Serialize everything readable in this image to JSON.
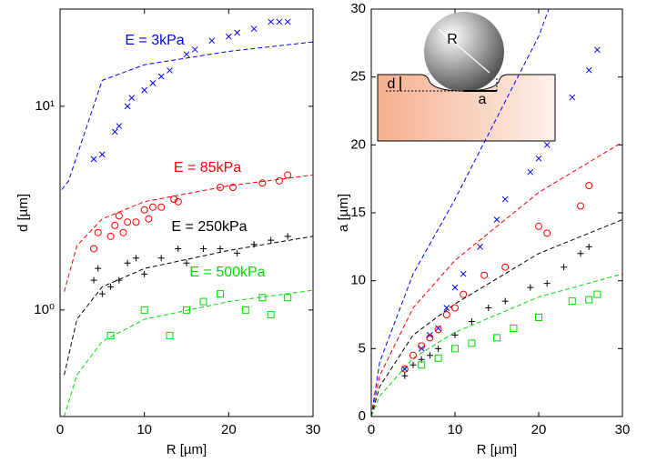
{
  "chart_data": [
    {
      "type": "scatter",
      "xlabel": "R [µm]",
      "ylabel": "d [µm]",
      "yscale": "log",
      "xlim": [
        0,
        30
      ],
      "ylim": [
        0.3,
        30
      ],
      "xticks": [
        0,
        10,
        20,
        30
      ],
      "yticks": [
        {
          "value": 1,
          "label": "10⁰"
        },
        {
          "value": 10,
          "label": "10¹"
        }
      ],
      "series": [
        {
          "name": "E = 3kPa",
          "color": "#0000ff",
          "marker": "x",
          "x": [
            4,
            5,
            6.5,
            7,
            8,
            8.5,
            10,
            11,
            12,
            13,
            15,
            16,
            18,
            20,
            21,
            23,
            25,
            26,
            27
          ],
          "values": [
            5.5,
            5.8,
            7.5,
            8,
            10,
            11,
            12,
            13,
            14,
            15,
            18,
            19,
            21,
            22,
            23,
            24,
            26,
            26,
            26
          ]
        },
        {
          "name": "E = 85kPa",
          "color": "#ff0000",
          "marker": "o",
          "x": [
            4,
            4.5,
            6,
            6.5,
            7,
            7.5,
            8,
            9,
            10,
            10.5,
            11,
            12,
            13.5,
            14,
            19,
            20.5,
            24,
            26,
            27
          ],
          "values": [
            2.0,
            2.4,
            2.3,
            2.6,
            2.9,
            2.4,
            2.7,
            2.7,
            3.1,
            2.8,
            3.2,
            3.2,
            3.5,
            3.4,
            4.0,
            4.0,
            4.2,
            4.3,
            4.6
          ]
        },
        {
          "name": "E = 250kPa",
          "color": "#000000",
          "marker": "+",
          "x": [
            4,
            4.5,
            5,
            6,
            7,
            8,
            9,
            10,
            12,
            14,
            15,
            17,
            19,
            21,
            23,
            25,
            27
          ],
          "values": [
            1.4,
            1.6,
            1.2,
            1.3,
            1.4,
            1.7,
            1.8,
            1.5,
            1.8,
            2.0,
            1.7,
            2.0,
            2.0,
            1.9,
            2.1,
            2.2,
            2.3
          ]
        },
        {
          "name": "E = 500kPa",
          "color": "#00dd00",
          "marker": "s",
          "x": [
            6,
            10,
            13,
            15,
            17,
            19,
            22,
            24,
            25,
            27
          ],
          "values": [
            0.75,
            1.0,
            0.75,
            1.0,
            1.1,
            1.2,
            1.0,
            1.15,
            0.95,
            1.15
          ]
        }
      ],
      "fits": [
        {
          "color": "#0000ff",
          "x": [
            0.2,
            1,
            5,
            10,
            20,
            30
          ],
          "values": [
            3.9,
            4.3,
            13.4,
            16,
            18.6,
            20.7
          ]
        },
        {
          "color": "#ff0000",
          "x": [
            0.5,
            2,
            5,
            10,
            20,
            30
          ],
          "values": [
            1.23,
            2.07,
            2.8,
            3.4,
            4.07,
            4.6
          ]
        },
        {
          "color": "#000000",
          "x": [
            0.5,
            2,
            5,
            10,
            20,
            30
          ],
          "values": [
            0.48,
            0.9,
            1.3,
            1.6,
            1.96,
            2.3
          ]
        },
        {
          "color": "#00dd00",
          "x": [
            0.5,
            2,
            5,
            10,
            20,
            30
          ],
          "values": [
            0.3,
            0.48,
            0.7,
            0.9,
            1.1,
            1.25
          ]
        }
      ]
    },
    {
      "type": "scatter",
      "xlabel": "R [µm]",
      "ylabel": "a [µm]",
      "xlim": [
        0,
        30
      ],
      "ylim": [
        0,
        30
      ],
      "xticks": [
        0,
        10,
        20,
        30
      ],
      "yticks": [
        0,
        5,
        10,
        15,
        20,
        25,
        30
      ],
      "inset_labels": [
        "R",
        "d",
        "a"
      ],
      "series": [
        {
          "color": "#0000ff",
          "marker": "x",
          "x": [
            4,
            6,
            7,
            8,
            9,
            10,
            11,
            13,
            15,
            16,
            19,
            20,
            21,
            24,
            26,
            27
          ],
          "values": [
            3.5,
            5,
            6,
            6.5,
            8,
            9.5,
            10.5,
            12.5,
            14.5,
            16,
            18,
            19,
            20,
            23.5,
            25.5,
            27
          ]
        },
        {
          "color": "#ff0000",
          "marker": "o",
          "x": [
            4,
            5,
            6,
            7,
            8,
            9,
            10,
            11,
            13.5,
            16,
            20,
            21,
            25,
            26
          ],
          "values": [
            3.5,
            4.5,
            5.2,
            5.8,
            6.4,
            7.5,
            8,
            9,
            10.4,
            11,
            14,
            13.5,
            15.5,
            17
          ]
        },
        {
          "color": "#000000",
          "marker": "+",
          "x": [
            4,
            5,
            6,
            7,
            8,
            10,
            12,
            14,
            16,
            19,
            21,
            23,
            25,
            26
          ],
          "values": [
            3,
            3.8,
            4.2,
            4.5,
            5,
            6,
            7,
            8,
            8.5,
            9.5,
            9.8,
            11,
            12,
            12.5
          ]
        },
        {
          "color": "#00dd00",
          "marker": "s",
          "x": [
            6,
            8,
            10,
            12,
            15,
            17,
            20,
            24,
            26,
            27
          ],
          "values": [
            3.8,
            4.3,
            5,
            5.4,
            5.8,
            6.5,
            7.3,
            8.5,
            8.6,
            9
          ]
        }
      ],
      "fits": [
        {
          "color": "#0000ff",
          "x": [
            0,
            1,
            5,
            10,
            15,
            20,
            21.2
          ],
          "values": [
            0,
            4,
            10.5,
            16,
            22,
            28,
            30
          ]
        },
        {
          "color": "#ff0000",
          "x": [
            0,
            1,
            5,
            10,
            20,
            30
          ],
          "values": [
            0,
            3,
            8,
            11.5,
            16.5,
            20.2
          ]
        },
        {
          "color": "#000000",
          "x": [
            0,
            1,
            5,
            10,
            20,
            30
          ],
          "values": [
            0,
            2.2,
            6,
            8.3,
            12,
            14.5
          ]
        },
        {
          "color": "#00dd00",
          "x": [
            0,
            1,
            5,
            10,
            20,
            30
          ],
          "values": [
            0,
            1.5,
            4.3,
            6.2,
            8.8,
            10.5
          ]
        }
      ]
    }
  ]
}
